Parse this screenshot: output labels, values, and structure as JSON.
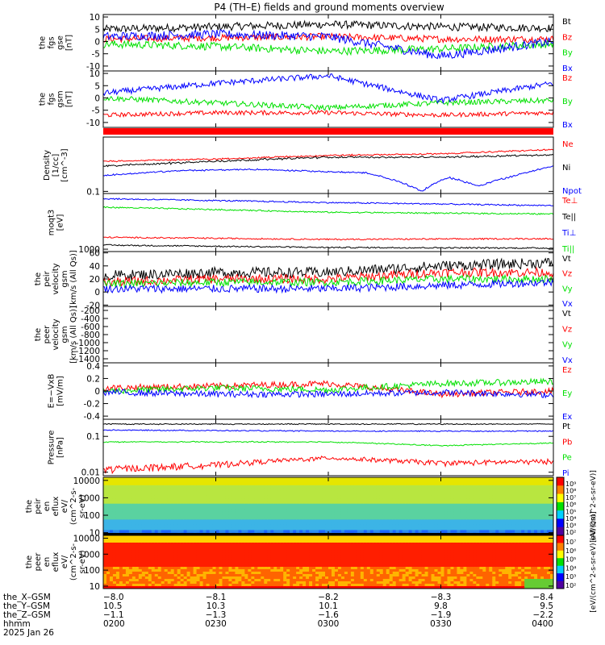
{
  "title": "P4 (TH–E) fields and ground moments overview",
  "colors": {
    "black": "#000000",
    "red": "#ff0000",
    "green": "#00e000",
    "blue": "#0000ff"
  },
  "chart_data": [
    {
      "type": "line",
      "panel": "fgs_gse",
      "ylabel": [
        "the",
        "fgs",
        "gse",
        "[nT]"
      ],
      "ylim": [
        -12,
        11
      ],
      "ticks": [
        10,
        5,
        0,
        -5,
        -10
      ],
      "series": [
        {
          "name": "Bt",
          "color": "#000000",
          "x": [
            0,
            30,
            60,
            90,
            120
          ],
          "values": [
            5,
            6,
            7,
            6,
            5.5
          ],
          "noise": 1.6
        },
        {
          "name": "Bz",
          "color": "#ff0000",
          "x": [
            0,
            30,
            60,
            90,
            120
          ],
          "values": [
            1,
            1.5,
            2,
            1,
            1
          ],
          "noise": 1.4
        },
        {
          "name": "By",
          "color": "#00e000",
          "x": [
            0,
            30,
            60,
            90,
            120
          ],
          "values": [
            -1,
            -2,
            -4,
            -3,
            -1
          ],
          "noise": 1.6
        },
        {
          "name": "Bx",
          "color": "#0000ff",
          "x": [
            0,
            30,
            60,
            90,
            120
          ],
          "values": [
            2,
            3,
            2,
            -6,
            0
          ],
          "noise": 1.8
        }
      ]
    },
    {
      "type": "line",
      "panel": "fgs_gsm",
      "ylabel": [
        "the",
        "fgs",
        "gsm",
        "[nT]"
      ],
      "ylim": [
        -12,
        11
      ],
      "ticks": [
        10,
        5,
        0,
        -5,
        -10
      ],
      "series": [
        {
          "name": "Bz",
          "color": "#ff0000",
          "x": [
            0,
            30,
            60,
            90,
            120
          ],
          "values": [
            -7,
            -6,
            -6,
            -7,
            -6
          ],
          "noise": 0.9
        },
        {
          "name": "By",
          "color": "#00e000",
          "x": [
            0,
            30,
            60,
            90,
            120
          ],
          "values": [
            0,
            -2,
            -4,
            -2,
            -1
          ],
          "noise": 1.1
        },
        {
          "name": "Bx",
          "color": "#0000ff",
          "x": [
            0,
            30,
            60,
            90,
            120
          ],
          "values": [
            2,
            6,
            9,
            -1,
            6
          ],
          "noise": 1.2
        }
      ]
    },
    {
      "type": "line",
      "panel": "density",
      "ylabel": [
        "Density",
        "[1/cc]",
        "[cm^-3]"
      ],
      "scale": "log",
      "ylim": [
        0.09,
        1.5
      ],
      "ticks": [
        0.1
      ],
      "series": [
        {
          "name": "Ne",
          "color": "#ff0000",
          "x": [
            0,
            30,
            60,
            90,
            120
          ],
          "values": [
            0.45,
            0.5,
            0.6,
            0.65,
            0.8
          ],
          "noise": 0.02
        },
        {
          "name": "Ni",
          "color": "#000000",
          "x": [
            0,
            30,
            60,
            90,
            120
          ],
          "values": [
            0.35,
            0.45,
            0.55,
            0.55,
            0.62
          ],
          "noise": 0.03
        },
        {
          "name": "Npot",
          "color": "#0000ff",
          "x": [
            0,
            20,
            40,
            70,
            85,
            92,
            100,
            110,
            120
          ],
          "values": [
            0.22,
            0.28,
            0.3,
            0.25,
            0.1,
            0.2,
            0.13,
            0.22,
            0.35
          ],
          "noise": 0.01
        }
      ]
    },
    {
      "type": "line",
      "panel": "temperature",
      "ylabel": [
        "moqt3",
        "[eV]"
      ],
      "scale": "log",
      "ylim": [
        900,
        12000
      ],
      "ticks": [
        1000
      ],
      "series": [
        {
          "name": "Te⊥",
          "color": "#ff0000",
          "x": [
            0,
            60,
            120
          ],
          "values": [
            1700,
            1550,
            1600
          ],
          "noise": 0.01
        },
        {
          "name": "Te||",
          "color": "#000000",
          "x": [
            0,
            60,
            120
          ],
          "values": [
            1200,
            1080,
            1050
          ],
          "noise": 0.01
        },
        {
          "name": "Ti⊥",
          "color": "#0000ff",
          "x": [
            0,
            60,
            120
          ],
          "values": [
            9500,
            8000,
            7000
          ],
          "noise": 0.01
        },
        {
          "name": "Ti||",
          "color": "#00e000",
          "x": [
            0,
            60,
            120
          ],
          "values": [
            6500,
            5200,
            4800
          ],
          "noise": 0.01
        }
      ]
    },
    {
      "type": "line",
      "panel": "peir_velocity",
      "ylabel": [
        "the",
        "peir",
        "velocity",
        "gsm",
        "[km/s (All Qs)]"
      ],
      "ylim": [
        -22,
        62
      ],
      "ticks": [
        60,
        40,
        20,
        0,
        -20
      ],
      "series": [
        {
          "name": "Vt",
          "color": "#000000",
          "x": [
            0,
            30,
            60,
            90,
            120
          ],
          "values": [
            25,
            30,
            30,
            40,
            45
          ],
          "noise": 8
        },
        {
          "name": "Vz",
          "color": "#ff0000",
          "x": [
            0,
            30,
            60,
            90,
            120
          ],
          "values": [
            15,
            20,
            20,
            30,
            30
          ],
          "noise": 7
        },
        {
          "name": "Vy",
          "color": "#00e000",
          "x": [
            0,
            30,
            60,
            90,
            120
          ],
          "values": [
            12,
            15,
            15,
            20,
            20
          ],
          "noise": 6
        },
        {
          "name": "Vx",
          "color": "#0000ff",
          "x": [
            0,
            30,
            60,
            90,
            120
          ],
          "values": [
            5,
            5,
            5,
            10,
            15
          ],
          "noise": 6
        }
      ]
    },
    {
      "type": "line",
      "panel": "peer_velocity",
      "ylabel": [
        "the",
        "peer",
        "velocity",
        "gsm",
        "[km/s (All Qs)]"
      ],
      "ylim": [
        -1500,
        -100
      ],
      "ticks": [
        -200,
        -400,
        -600,
        -800,
        -1000,
        -1200,
        -1400
      ],
      "series": [
        {
          "name": "Vt",
          "color": "#000000",
          "values": []
        },
        {
          "name": "Vz",
          "color": "#ff0000",
          "values": []
        },
        {
          "name": "Vy",
          "color": "#00e000",
          "values": []
        },
        {
          "name": "Vx",
          "color": "#0000ff",
          "values": []
        }
      ]
    },
    {
      "type": "line",
      "panel": "efield",
      "ylabel": [
        "E=−VxB",
        "[mV/m]"
      ],
      "ylim": [
        -0.45,
        0.45
      ],
      "ticks": [
        0.4,
        0.2,
        0.0,
        -0.2,
        -0.4
      ],
      "series": [
        {
          "name": "Ez",
          "color": "#ff0000",
          "x": [
            0,
            30,
            60,
            90,
            120
          ],
          "values": [
            0.05,
            0.08,
            0.12,
            -0.05,
            0.0
          ],
          "noise": 0.05
        },
        {
          "name": "Ey",
          "color": "#00e000",
          "x": [
            0,
            30,
            60,
            90,
            120
          ],
          "values": [
            0.0,
            0.05,
            0.02,
            0.12,
            0.15
          ],
          "noise": 0.05
        },
        {
          "name": "Ex",
          "color": "#0000ff",
          "x": [
            0,
            30,
            60,
            90,
            120
          ],
          "values": [
            -0.02,
            -0.05,
            -0.05,
            -0.02,
            -0.06
          ],
          "noise": 0.05
        }
      ]
    },
    {
      "type": "line",
      "panel": "pressure",
      "ylabel": [
        "Pressure",
        "[nPa]"
      ],
      "scale": "log",
      "ylim": [
        0.008,
        0.3
      ],
      "ticks": [
        0.1,
        0.01
      ],
      "series": [
        {
          "name": "Pt",
          "color": "#000000",
          "x": [
            0,
            60,
            120
          ],
          "values": [
            0.22,
            0.22,
            0.22
          ],
          "noise": 0.005
        },
        {
          "name": "Pb",
          "color": "#ff0000",
          "x": [
            0,
            30,
            60,
            90,
            120
          ],
          "values": [
            0.012,
            0.016,
            0.025,
            0.018,
            0.02
          ],
          "noise": 0.006
        },
        {
          "name": "Pe",
          "color": "#00e000",
          "x": [
            0,
            60,
            90,
            120
          ],
          "values": [
            0.07,
            0.07,
            0.055,
            0.065
          ],
          "noise": 0.002
        },
        {
          "name": "Pi",
          "color": "#0000ff",
          "x": [
            0,
            60,
            120
          ],
          "values": [
            0.15,
            0.14,
            0.14
          ],
          "noise": 0.003
        }
      ]
    },
    {
      "type": "heatmap",
      "panel": "peir_eflux",
      "ylabel": [
        "the",
        "peir",
        "en",
        "eflux",
        "eV/",
        "(cm^2-s-",
        "sr-eV)"
      ],
      "scale": "log",
      "ylim": [
        7,
        15000
      ],
      "ticks": [
        10000,
        1000,
        100,
        10
      ],
      "colorbar": {
        "label": "[eV/(cm^2-s-sr-eV)]",
        "ticks": [
          "10⁹",
          "10⁸",
          "10⁷",
          "10⁶",
          "10⁵",
          "10⁴",
          "10³",
          "10²"
        ]
      }
    },
    {
      "type": "heatmap",
      "panel": "peer_eflux",
      "ylabel": [
        "the",
        "peer",
        "en",
        "eflux",
        "eV/",
        "(cm^2-s-",
        "sr-eV)"
      ],
      "scale": "log",
      "ylim": [
        7,
        15000
      ],
      "ticks": [
        10000,
        1000,
        100,
        10
      ],
      "colorbar": {
        "label": "[eV/(cm^2-s-sr-eV) (All Qs)]",
        "ticks": [
          "10⁷",
          "10⁶",
          "10⁵",
          "10⁴",
          "10³",
          "10²"
        ]
      }
    }
  ],
  "xaxis": {
    "rows": [
      {
        "label": "the_X–GSM",
        "values": [
          "−8.0",
          "−8.1",
          "−8.2",
          "−8.3",
          "−8.4"
        ]
      },
      {
        "label": "the_Y–GSM",
        "values": [
          "10.5",
          "10.3",
          "10.1",
          "9.8",
          "9.5"
        ]
      },
      {
        "label": "the_Z–GSM",
        "values": [
          "−1.1",
          "−1.3",
          "−1.6",
          "−1.9",
          "−2.2"
        ]
      },
      {
        "label": "hhmm",
        "values": [
          "0200",
          "0230",
          "0300",
          "0330",
          "0400"
        ]
      },
      {
        "label": "2025 Jan 26",
        "values": []
      }
    ]
  }
}
